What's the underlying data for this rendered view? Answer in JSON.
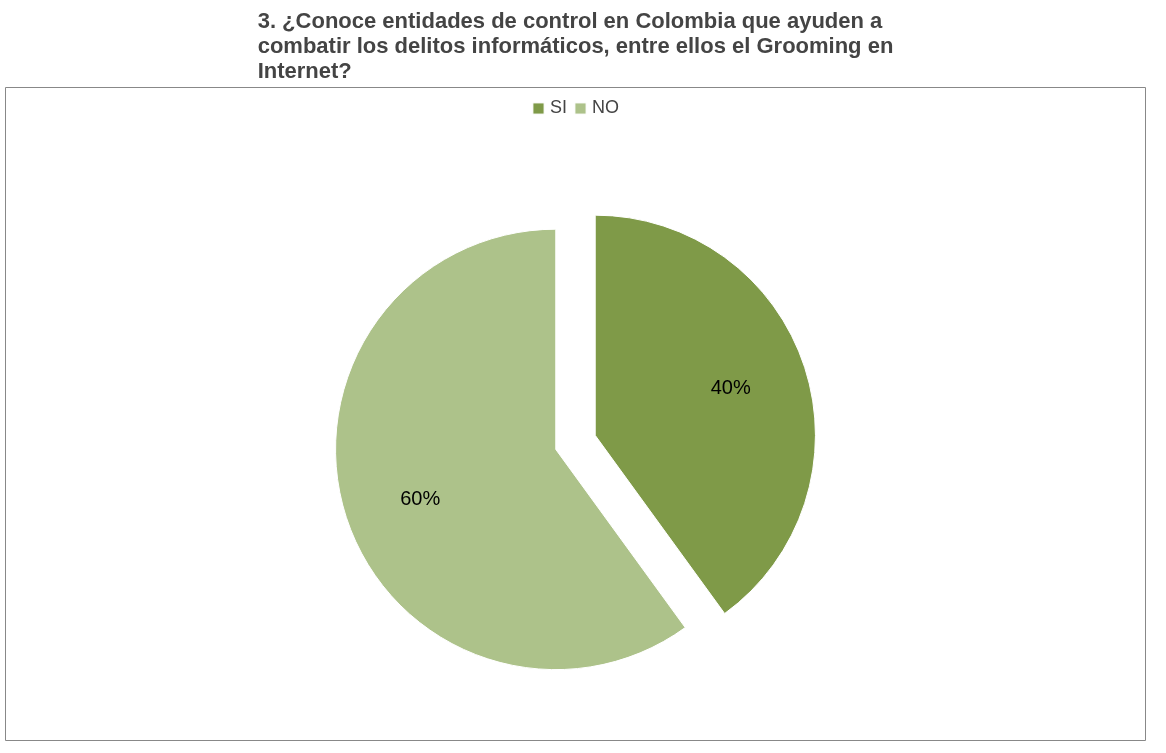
{
  "chart_data": {
    "type": "pie",
    "title": "3. ¿Conoce entidades de control en Colombia que ayuden a\ncombatir los delitos informáticos, entre ellos el Grooming en\nInternet?",
    "categories": [
      "SI",
      "NO"
    ],
    "values": [
      40,
      60
    ],
    "colors": [
      "#7f9a48",
      "#adc28a"
    ],
    "value_labels": [
      "40%",
      "60%"
    ],
    "legend": "top"
  }
}
